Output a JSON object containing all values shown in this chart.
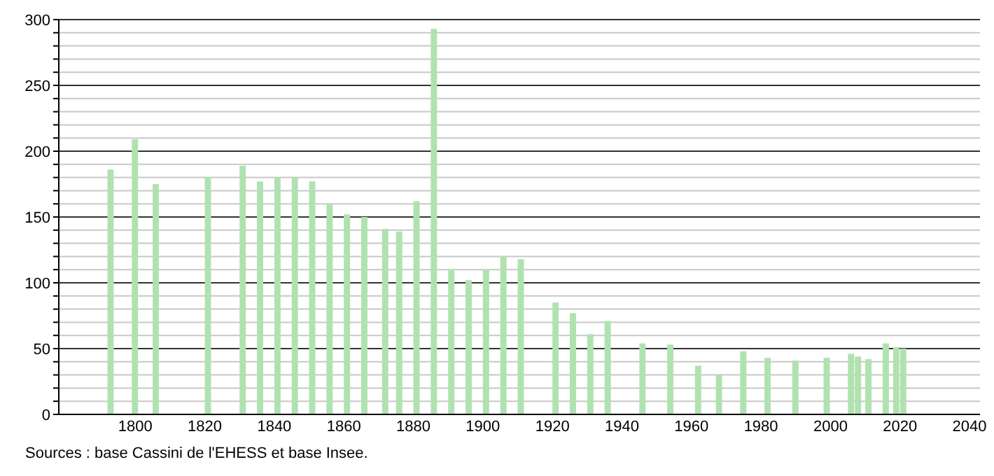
{
  "chart_data": {
    "type": "bar",
    "x": [
      1793,
      1800,
      1806,
      1821,
      1831,
      1836,
      1841,
      1846,
      1851,
      1856,
      1861,
      1866,
      1872,
      1876,
      1881,
      1886,
      1891,
      1896,
      1901,
      1906,
      1911,
      1921,
      1926,
      1931,
      1936,
      1946,
      1954,
      1962,
      1968,
      1975,
      1982,
      1990,
      1999,
      2006,
      2008,
      2011,
      2016,
      2019,
      2021
    ],
    "values": [
      186,
      209,
      175,
      180,
      189,
      177,
      180,
      180,
      177,
      160,
      152,
      150,
      141,
      139,
      162,
      293,
      110,
      102,
      110,
      120,
      118,
      85,
      77,
      61,
      71,
      54,
      53,
      37,
      30,
      48,
      43,
      41,
      43,
      46,
      44,
      42,
      54,
      51,
      50
    ],
    "color": "#b0e2b0",
    "xlim": [
      1778,
      2043
    ],
    "xticks": [
      1800,
      1820,
      1840,
      1860,
      1880,
      1900,
      1920,
      1940,
      1960,
      1980,
      2000,
      2020,
      2040
    ],
    "ylim": [
      0,
      300
    ],
    "yticks": [
      0,
      {
        "value": 10,
        "label": null
      },
      {
        "value": 20,
        "label": null
      },
      {
        "value": 30,
        "label": null
      },
      {
        "value": 40,
        "label": null
      },
      50,
      {
        "value": 60,
        "label": null
      },
      {
        "value": 70,
        "label": null
      },
      {
        "value": 80,
        "label": null
      },
      {
        "value": 90,
        "label": null
      },
      100,
      {
        "value": 110,
        "label": null
      },
      {
        "value": 120,
        "label": null
      },
      {
        "value": 130,
        "label": null
      },
      {
        "value": 140,
        "label": null
      },
      150,
      {
        "value": 160,
        "label": null
      },
      {
        "value": 170,
        "label": null
      },
      {
        "value": 180,
        "label": null
      },
      {
        "value": 190,
        "label": null
      },
      200,
      {
        "value": 210,
        "label": null
      },
      {
        "value": 220,
        "label": null
      },
      {
        "value": 230,
        "label": null
      },
      {
        "value": 240,
        "label": null
      },
      250,
      {
        "value": 260,
        "label": null
      },
      {
        "value": 270,
        "label": null
      },
      {
        "value": 280,
        "label": null
      },
      {
        "value": 290,
        "label": null
      },
      300
    ],
    "grid": "y",
    "annotations": [
      "Sources : base Cassini de l'EHESS et base Insee."
    ]
  }
}
